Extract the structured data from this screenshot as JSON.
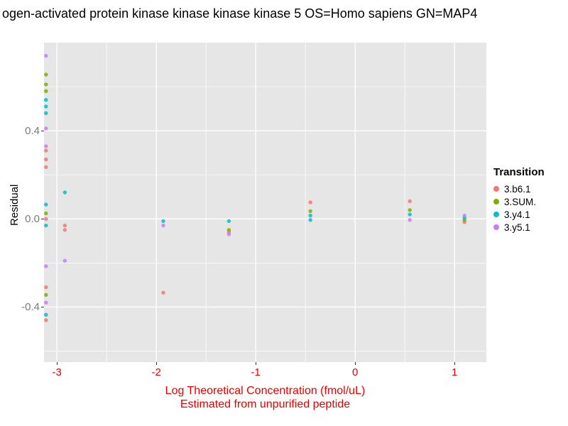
{
  "title": "ogen-activated protein kinase kinase kinase kinase 5 OS=Homo sapiens GN=MAP4",
  "colors": {
    "panel_background": "#E6E6E6",
    "gridline": "#FFFFFF",
    "x_axis_text": "#E10000",
    "y_tick_text": "#7A7A7A"
  },
  "chart_data": {
    "type": "scatter",
    "title": "ogen-activated protein kinase kinase kinase kinase 5 OS=Homo sapiens GN=MAP4",
    "xlabel_line1": "Log Theoretical Concentration (fmol/uL)",
    "xlabel_line2": "Estimated from unpurified peptide",
    "ylabel": "Residual",
    "xlim": [
      -3.13,
      1.32
    ],
    "ylim": [
      -0.65,
      0.8
    ],
    "x_ticks": [
      -3,
      -2,
      -1,
      0,
      1
    ],
    "y_ticks": [
      0.4,
      0.0,
      -0.4
    ],
    "x_minor": [
      -2.5,
      -1.5,
      -0.5,
      0.5
    ],
    "y_minor": [
      0.6,
      0.2,
      -0.2,
      -0.6
    ],
    "grid": true,
    "legend_title": "Transition",
    "legend_position": "right",
    "point_radius": 2.7,
    "series": [
      {
        "name": "3.b6.1",
        "color": "#F8766D",
        "points": [
          [
            -3.11,
            0.31
          ],
          [
            -3.11,
            0.27
          ],
          [
            -3.11,
            0.235
          ],
          [
            -3.11,
            0.0
          ],
          [
            -3.11,
            -0.31
          ],
          [
            -3.11,
            -0.46
          ],
          [
            -2.92,
            -0.03
          ],
          [
            -2.92,
            -0.05
          ],
          [
            -1.93,
            -0.335
          ],
          [
            -1.27,
            -0.06
          ],
          [
            -0.45,
            0.075
          ],
          [
            0.55,
            0.08
          ],
          [
            1.1,
            -0.015
          ]
        ]
      },
      {
        "name": "3.SUM.",
        "color": "#7CAE00",
        "points": [
          [
            -3.11,
            0.655
          ],
          [
            -3.11,
            0.61
          ],
          [
            -3.11,
            0.58
          ],
          [
            -3.11,
            0.025
          ],
          [
            -3.11,
            -0.345
          ],
          [
            -1.27,
            -0.05
          ],
          [
            -0.45,
            0.035
          ],
          [
            0.55,
            0.04
          ],
          [
            1.1,
            -0.005
          ]
        ]
      },
      {
        "name": "3.y4.1",
        "color": "#00BFC4",
        "points": [
          [
            -3.11,
            0.54
          ],
          [
            -3.11,
            0.51
          ],
          [
            -3.11,
            0.48
          ],
          [
            -3.11,
            0.065
          ],
          [
            -3.11,
            -0.03
          ],
          [
            -3.11,
            -0.435
          ],
          [
            -2.92,
            0.12
          ],
          [
            -1.93,
            -0.01
          ],
          [
            -1.27,
            -0.01
          ],
          [
            -0.45,
            0.015
          ],
          [
            -0.45,
            -0.005
          ],
          [
            0.55,
            0.02
          ],
          [
            1.1,
            0.005
          ]
        ]
      },
      {
        "name": "3.y5.1",
        "color": "#C77CFF",
        "points": [
          [
            -3.11,
            0.74
          ],
          [
            -3.11,
            0.41
          ],
          [
            -3.11,
            0.33
          ],
          [
            -3.11,
            -0.215
          ],
          [
            -3.11,
            -0.38
          ],
          [
            -2.92,
            -0.19
          ],
          [
            -1.93,
            -0.03
          ],
          [
            -1.27,
            -0.07
          ],
          [
            0.55,
            -0.005
          ],
          [
            1.1,
            0.015
          ]
        ]
      }
    ]
  }
}
